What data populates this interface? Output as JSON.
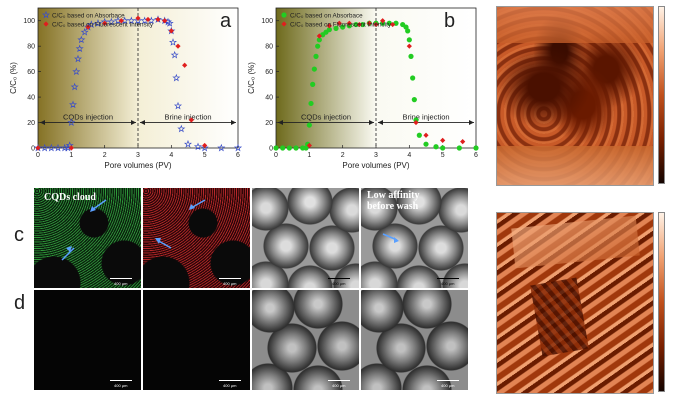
{
  "chart_data": [
    {
      "panel": "a",
      "type": "scatter",
      "xlabel": "Pore volumes (PV)",
      "ylabel": "C/C₀ (%)",
      "xlim": [
        0,
        6
      ],
      "ylim": [
        0,
        110
      ],
      "xticks": [
        0,
        1,
        2,
        3,
        4,
        5,
        6
      ],
      "yticks": [
        0,
        20,
        40,
        60,
        80,
        100
      ],
      "legend_position": "top-left",
      "series": [
        {
          "name": "C/C₀ based on Absorbace",
          "color": "#3a4ec8",
          "marker": "star",
          "x": [
            0.0,
            0.2,
            0.4,
            0.6,
            0.8,
            0.9,
            0.95,
            1.0,
            1.05,
            1.1,
            1.15,
            1.2,
            1.25,
            1.3,
            1.4,
            1.5,
            1.6,
            1.8,
            2.0,
            2.2,
            2.4,
            2.6,
            2.8,
            3.0,
            3.2,
            3.4,
            3.6,
            3.8,
            3.9,
            3.95,
            4.0,
            4.05,
            4.1,
            4.15,
            4.2,
            4.3,
            4.5,
            4.8,
            5.0,
            5.5,
            6.0
          ],
          "y": [
            0,
            0,
            0,
            0,
            0,
            0,
            2,
            20,
            34,
            48,
            60,
            70,
            78,
            85,
            91,
            95,
            97,
            98,
            99,
            99,
            100,
            100,
            100,
            100,
            100,
            100,
            101,
            100,
            99,
            98,
            92,
            83,
            73,
            55,
            33,
            15,
            3,
            1,
            0,
            0,
            0
          ]
        },
        {
          "name": "C/C₀ based on Fluorescent Intensity",
          "color": "#e01e1e",
          "marker": "diamond",
          "x": [
            0.0,
            1.0,
            1.5,
            2.0,
            2.5,
            3.0,
            3.3,
            3.6,
            3.8,
            4.0,
            4.2,
            4.4,
            4.6,
            5.0
          ],
          "y": [
            0,
            0,
            95,
            98,
            100,
            102,
            101,
            101,
            100,
            92,
            80,
            65,
            22,
            2
          ]
        }
      ],
      "annotations": [
        "CQDs injection",
        "Brine injection"
      ],
      "vline_x": 3
    },
    {
      "panel": "b",
      "type": "scatter",
      "xlabel": "Pore volumes (PV)",
      "ylabel": "C/C₀ (%)",
      "xlim": [
        0,
        6
      ],
      "ylim": [
        0,
        110
      ],
      "xticks": [
        0,
        1,
        2,
        3,
        4,
        5,
        6
      ],
      "yticks": [
        0,
        20,
        40,
        60,
        80,
        100
      ],
      "legend_position": "top-left",
      "series": [
        {
          "name": "C/C₀ based on Absorbace",
          "color": "#22cc22",
          "marker": "circle",
          "x": [
            0.0,
            0.2,
            0.4,
            0.6,
            0.8,
            0.9,
            0.95,
            1.0,
            1.05,
            1.1,
            1.15,
            1.2,
            1.25,
            1.3,
            1.4,
            1.5,
            1.6,
            1.8,
            2.0,
            2.2,
            2.4,
            2.6,
            2.8,
            3.0,
            3.2,
            3.4,
            3.6,
            3.8,
            3.9,
            3.95,
            4.0,
            4.05,
            4.1,
            4.15,
            4.2,
            4.3,
            4.5,
            4.8,
            5.0,
            5.5,
            6.0
          ],
          "y": [
            0,
            0,
            0,
            0,
            0,
            0,
            3,
            18,
            35,
            50,
            62,
            72,
            80,
            85,
            89,
            91,
            93,
            94,
            95,
            96,
            97,
            97,
            98,
            98,
            98,
            98,
            98,
            97,
            95,
            92,
            85,
            72,
            55,
            38,
            22,
            10,
            3,
            1,
            0,
            0,
            0
          ]
        },
        {
          "name": "C/C₀ based on Fluorescent Intensity",
          "color": "#e01e1e",
          "marker": "diamond",
          "x": [
            1.0,
            1.3,
            1.6,
            1.9,
            2.2,
            2.5,
            2.8,
            3.0,
            3.2,
            3.5,
            4.0,
            4.2,
            4.5,
            5.0,
            5.6
          ],
          "y": [
            2,
            88,
            96,
            98,
            98,
            97,
            98,
            97,
            100,
            97,
            80,
            20,
            10,
            6,
            5
          ]
        }
      ],
      "annotations": [
        "CQDs injection",
        "Brine injection"
      ],
      "vline_x": 3
    }
  ],
  "labels": {
    "panel_a": "a",
    "panel_b": "b",
    "panel_c": "c",
    "panel_d": "d",
    "cqds_cloud": "CQDs cloud",
    "low_affinity": "Low affinity before wash",
    "scale": "400 μm"
  },
  "colors": {
    "gold_bg_left": "#857225",
    "gold_bg_right": "#f4efd6",
    "green_bg_left": "#6e6a1c",
    "green_bg_right": "#fafaf2",
    "afm_dark": "#3a0c00",
    "afm_light": "#f0a070"
  }
}
